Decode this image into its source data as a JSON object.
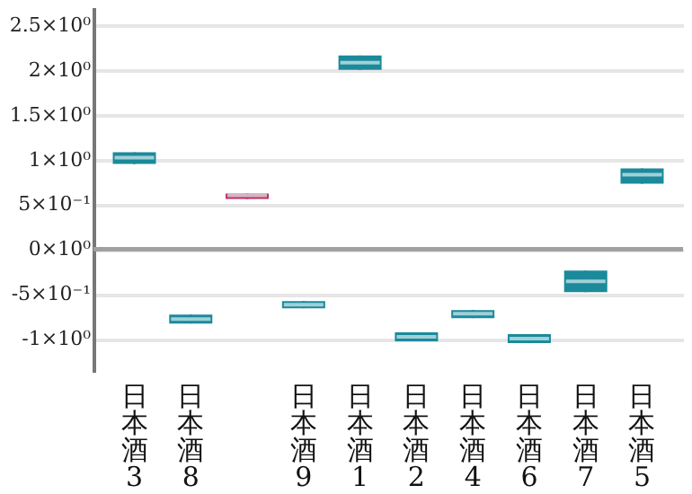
{
  "chart_data": {
    "type": "box",
    "categories": [
      "日本酒3",
      "日本酒8",
      null,
      "日本酒9",
      "日本酒1",
      "日本酒2",
      "日本酒4",
      "日本酒6",
      "日本酒7",
      "日本酒5"
    ],
    "colors": [
      "#1b8a9b",
      "#1b8a9b",
      "#c2305f",
      "#1b8a9b",
      "#1b8a9b",
      "#1b8a9b",
      "#1b8a9b",
      "#1b8a9b",
      "#1b8a9b",
      "#1b8a9b"
    ],
    "boxes": [
      {
        "low": 0.95,
        "q1": 0.95,
        "median": 1.02,
        "q3": 1.08,
        "high": 1.08
      },
      {
        "low": -0.83,
        "q1": -0.83,
        "median": -0.78,
        "q3": -0.73,
        "high": -0.73
      },
      {
        "low": 0.56,
        "q1": 0.56,
        "median": 0.6,
        "q3": 0.62,
        "high": 0.62
      },
      {
        "low": -0.66,
        "q1": -0.66,
        "median": -0.62,
        "q3": -0.58,
        "high": -0.58
      },
      {
        "low": 2.0,
        "q1": 2.0,
        "median": 2.08,
        "q3": 2.16,
        "high": 2.16
      },
      {
        "low": -1.03,
        "q1": -1.03,
        "median": -0.98,
        "q3": -0.93,
        "high": -0.93
      },
      {
        "low": -0.77,
        "q1": -0.77,
        "median": -0.72,
        "q3": -0.68,
        "high": -0.68
      },
      {
        "low": -1.05,
        "q1": -1.05,
        "median": -1.0,
        "q3": -0.95,
        "high": -0.95
      },
      {
        "low": -0.48,
        "q1": -0.48,
        "median": -0.36,
        "q3": -0.24,
        "high": -0.24
      },
      {
        "low": 0.73,
        "q1": 0.73,
        "median": 0.83,
        "q3": 0.9,
        "high": 0.9
      }
    ],
    "ylim": [
      -1.37,
      2.7
    ],
    "yticks": [
      {
        "value": -1,
        "label": "-1×10⁰"
      },
      {
        "value": -0.5,
        "label": "-5×10⁻¹"
      },
      {
        "value": 0,
        "label": "0×10⁰"
      },
      {
        "value": 0.5,
        "label": "5×10⁻¹"
      },
      {
        "value": 1,
        "label": "1×10⁰"
      },
      {
        "value": 1.5,
        "label": "1.5×10⁰"
      },
      {
        "value": 2,
        "label": "2×10⁰"
      },
      {
        "value": 2.5,
        "label": "2.5×10⁰"
      }
    ],
    "ref_lines": [
      {
        "axis": "y",
        "value": 0,
        "color": "#a0a0a0"
      }
    ],
    "grid": "y"
  }
}
